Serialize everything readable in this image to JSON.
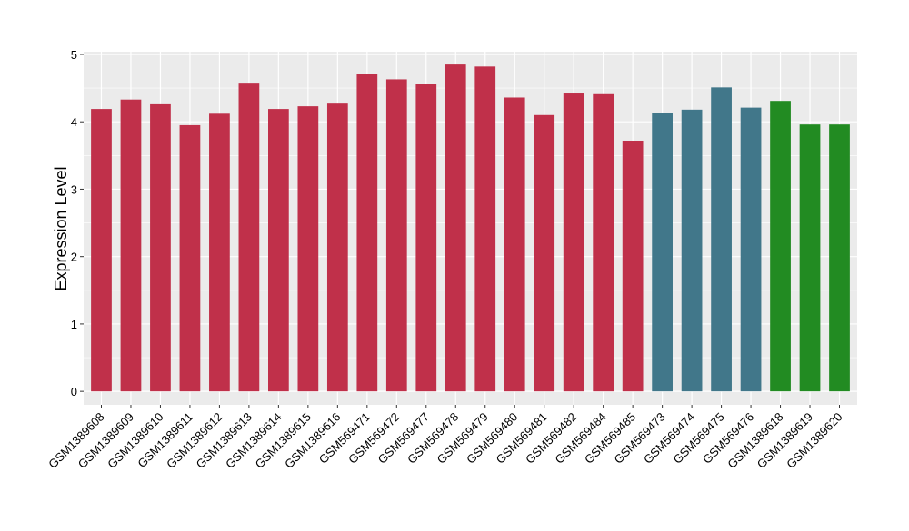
{
  "chart_data": {
    "type": "bar",
    "title": "",
    "xlabel": "",
    "ylabel": "Expression Level",
    "ylim": [
      -0.2,
      5.04
    ],
    "yticks": [
      0,
      1,
      2,
      3,
      4,
      5
    ],
    "grid": true,
    "legend": "none",
    "categories": [
      "GSM1389608",
      "GSM1389609",
      "GSM1389610",
      "GSM1389611",
      "GSM1389612",
      "GSM1389613",
      "GSM1389614",
      "GSM1389615",
      "GSM1389616",
      "GSM569471",
      "GSM569472",
      "GSM569477",
      "GSM569478",
      "GSM569479",
      "GSM569480",
      "GSM569481",
      "GSM569482",
      "GSM569484",
      "GSM569485",
      "GSM569473",
      "GSM569474",
      "GSM569475",
      "GSM569476",
      "GSM1389618",
      "GSM1389619",
      "GSM1389620"
    ],
    "values": [
      4.19,
      4.33,
      4.26,
      3.95,
      4.12,
      4.58,
      4.19,
      4.23,
      4.27,
      4.71,
      4.63,
      4.56,
      4.85,
      4.82,
      4.36,
      4.1,
      4.42,
      4.41,
      3.72,
      4.13,
      4.18,
      4.51,
      4.21,
      4.31,
      3.96,
      3.96
    ],
    "bar_colors": [
      "#C0304A",
      "#C0304A",
      "#C0304A",
      "#C0304A",
      "#C0304A",
      "#C0304A",
      "#C0304A",
      "#C0304A",
      "#C0304A",
      "#C0304A",
      "#C0304A",
      "#C0304A",
      "#C0304A",
      "#C0304A",
      "#C0304A",
      "#C0304A",
      "#C0304A",
      "#C0304A",
      "#C0304A",
      "#41778A",
      "#41778A",
      "#41778A",
      "#41778A",
      "#228B22",
      "#228B22",
      "#228B22"
    ],
    "panel_background": "#EBEBEB",
    "grid_color": "#FFFFFF"
  }
}
